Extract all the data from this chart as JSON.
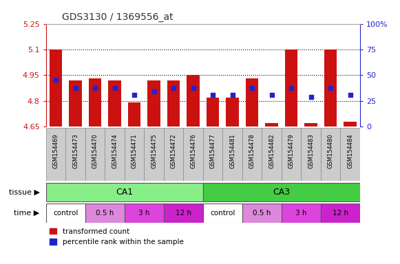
{
  "title": "GDS3130 / 1369556_at",
  "samples": [
    "GSM154469",
    "GSM154473",
    "GSM154470",
    "GSM154474",
    "GSM154471",
    "GSM154475",
    "GSM154472",
    "GSM154476",
    "GSM154477",
    "GSM154481",
    "GSM154478",
    "GSM154482",
    "GSM154479",
    "GSM154483",
    "GSM154480",
    "GSM154484"
  ],
  "bar_bottom": 4.65,
  "bar_tops": [
    5.1,
    4.92,
    4.93,
    4.92,
    4.79,
    4.92,
    4.92,
    4.95,
    4.82,
    4.82,
    4.93,
    4.67,
    5.1,
    4.67,
    5.1,
    4.68
  ],
  "blue_values": [
    4.925,
    4.875,
    4.875,
    4.875,
    4.835,
    4.855,
    4.875,
    4.875,
    4.835,
    4.835,
    4.875,
    4.835,
    4.875,
    4.825,
    4.875,
    4.835
  ],
  "ylim": [
    4.65,
    5.25
  ],
  "yticks_left": [
    4.65,
    4.8,
    4.95,
    5.1,
    5.25
  ],
  "yticks_right": [
    0,
    25,
    50,
    75,
    100
  ],
  "right_ytick_labels": [
    "0",
    "25",
    "50",
    "75",
    "100%"
  ],
  "bar_color": "#cc1111",
  "blue_color": "#2222cc",
  "bg_color": "#ffffff",
  "tissue_row": [
    {
      "label": "CA1",
      "start": 0,
      "end": 7,
      "color": "#88ee88"
    },
    {
      "label": "CA3",
      "start": 8,
      "end": 15,
      "color": "#44cc44"
    }
  ],
  "time_row": [
    {
      "label": "control",
      "start": 0,
      "end": 1,
      "color": "#ffffff"
    },
    {
      "label": "0.5 h",
      "start": 2,
      "end": 3,
      "color": "#dd88dd"
    },
    {
      "label": "3 h",
      "start": 4,
      "end": 5,
      "color": "#dd44dd"
    },
    {
      "label": "12 h",
      "start": 6,
      "end": 7,
      "color": "#cc22cc"
    },
    {
      "label": "control",
      "start": 8,
      "end": 9,
      "color": "#ffffff"
    },
    {
      "label": "0.5 h",
      "start": 10,
      "end": 11,
      "color": "#dd88dd"
    },
    {
      "label": "3 h",
      "start": 12,
      "end": 13,
      "color": "#dd44dd"
    },
    {
      "label": "12 h",
      "start": 14,
      "end": 15,
      "color": "#cc22cc"
    }
  ],
  "tissue_label": "tissue",
  "time_label": "time",
  "legend_red": "transformed count",
  "legend_blue": "percentile rank within the sample",
  "title_color": "#333333",
  "left_axis_color": "#cc1111",
  "right_axis_color": "#2222cc",
  "xticklabel_bg": "#cccccc",
  "xticklabel_border": "#888888"
}
